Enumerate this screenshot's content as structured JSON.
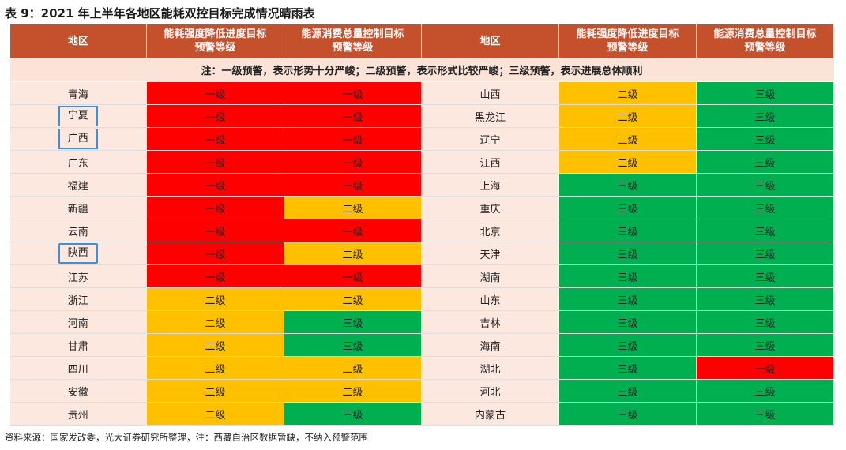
{
  "caption": "表 9：2021 年上半年各地区能耗双控目标完成情况晴雨表",
  "headers": {
    "region": "地区",
    "intensity": [
      "能耗强度降低进度目标",
      "预警等级"
    ],
    "total": [
      "能源消费总量控制目标",
      "预警等级"
    ]
  },
  "note": "注：一级预警，表示形势十分严峻；二级预警，表示形式比较严峻；三级预警，表示进展总体顺利",
  "colors": {
    "一级": "#ff0000",
    "二级": "#ffc000",
    "三级": "#00b050"
  },
  "left": [
    {
      "region": "青海",
      "intensity": "一级",
      "total": "一级"
    },
    {
      "region": "宁夏",
      "intensity": "一级",
      "total": "一级"
    },
    {
      "region": "广西",
      "intensity": "一级",
      "total": "一级"
    },
    {
      "region": "广东",
      "intensity": "一级",
      "total": "一级"
    },
    {
      "region": "福建",
      "intensity": "一级",
      "total": "一级"
    },
    {
      "region": "新疆",
      "intensity": "一级",
      "total": "二级"
    },
    {
      "region": "云南",
      "intensity": "一级",
      "total": "一级"
    },
    {
      "region": "陕西",
      "intensity": "一级",
      "total": "二级"
    },
    {
      "region": "江苏",
      "intensity": "一级",
      "total": "一级"
    },
    {
      "region": "浙江",
      "intensity": "二级",
      "total": "二级"
    },
    {
      "region": "河南",
      "intensity": "二级",
      "total": "三级"
    },
    {
      "region": "甘肃",
      "intensity": "二级",
      "total": "三级"
    },
    {
      "region": "四川",
      "intensity": "二级",
      "total": "二级"
    },
    {
      "region": "安徽",
      "intensity": "二级",
      "total": "二级"
    },
    {
      "region": "贵州",
      "intensity": "二级",
      "total": "三级"
    }
  ],
  "right": [
    {
      "region": "山西",
      "intensity": "二级",
      "total": "三级"
    },
    {
      "region": "黑龙江",
      "intensity": "二级",
      "total": "三级"
    },
    {
      "region": "辽宁",
      "intensity": "二级",
      "total": "三级"
    },
    {
      "region": "江西",
      "intensity": "二级",
      "total": "三级"
    },
    {
      "region": "上海",
      "intensity": "三级",
      "total": "三级"
    },
    {
      "region": "重庆",
      "intensity": "三级",
      "total": "三级"
    },
    {
      "region": "北京",
      "intensity": "三级",
      "total": "三级"
    },
    {
      "region": "天津",
      "intensity": "三级",
      "total": "三级"
    },
    {
      "region": "湖南",
      "intensity": "三级",
      "total": "三级"
    },
    {
      "region": "山东",
      "intensity": "三级",
      "total": "三级"
    },
    {
      "region": "吉林",
      "intensity": "三级",
      "total": "三级"
    },
    {
      "region": "海南",
      "intensity": "三级",
      "total": "三级"
    },
    {
      "region": "湖北",
      "intensity": "三级",
      "total": "一级"
    },
    {
      "region": "河北",
      "intensity": "三级",
      "total": "三级"
    },
    {
      "region": "内蒙古",
      "intensity": "三级",
      "total": "三级"
    }
  ],
  "source": "资料来源：国家发改委，光大证券研究所整理，注：西藏自治区数据暂缺，不纳入预警范围"
}
